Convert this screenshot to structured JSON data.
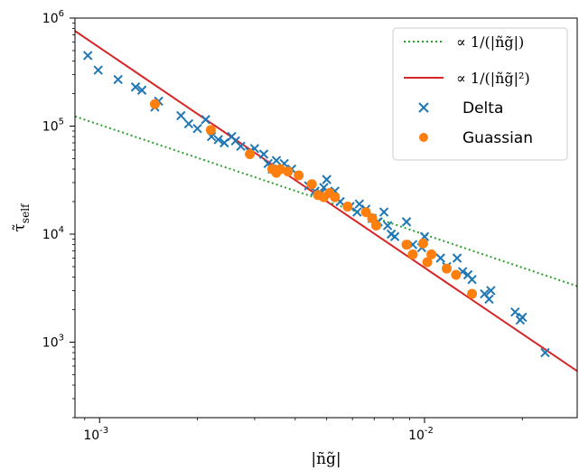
{
  "chart_data": {
    "type": "scatter",
    "xscale": "log",
    "yscale": "log",
    "xlim": [
      0.00084,
      0.0295
    ],
    "ylim": [
      200,
      1000000
    ],
    "xlabel": "|ñg̃|",
    "ylabel": "τ̃",
    "ylabel_sub": "self",
    "grid": false,
    "legend_position": "top-right",
    "x_ticks": [
      {
        "value": 0.001,
        "base": "10",
        "exp": "-3"
      },
      {
        "value": 0.01,
        "base": "10",
        "exp": "-2"
      }
    ],
    "y_ticks": [
      {
        "value": 1000,
        "base": "10",
        "exp": "3"
      },
      {
        "value": 10000,
        "base": "10",
        "exp": "4"
      },
      {
        "value": 100000,
        "base": "10",
        "exp": "5"
      },
      {
        "value": 1000000,
        "base": "10",
        "exp": "6"
      }
    ],
    "lines": [
      {
        "name": "∝ 1/(|ñg̃|)",
        "style": "dotted",
        "color": "#2ca02c",
        "x": [
          0.00084,
          0.0295
        ],
        "y": [
          123000,
          3300
        ]
      },
      {
        "name": "∝ 1/(|ñg̃|²)",
        "style": "solid",
        "color": "#d62728",
        "x": [
          0.00084,
          0.0295
        ],
        "y": [
          760000,
          540
        ]
      }
    ],
    "series": [
      {
        "name": "Delta",
        "marker": "x",
        "color": "#1f77b4",
        "x": [
          0.00092,
          0.00099,
          0.00114,
          0.00129,
          0.00135,
          0.00148,
          0.00152,
          0.00178,
          0.00188,
          0.002,
          0.00212,
          0.00221,
          0.00232,
          0.00242,
          0.00255,
          0.00262,
          0.00272,
          0.0029,
          0.003,
          0.0032,
          0.0033,
          0.0034,
          0.0035,
          0.0037,
          0.0039,
          0.0044,
          0.0046,
          0.0048,
          0.0049,
          0.005,
          0.0051,
          0.0053,
          0.0055,
          0.0059,
          0.0062,
          0.0063,
          0.0066,
          0.0069,
          0.0072,
          0.0075,
          0.0077,
          0.0079,
          0.0081,
          0.0088,
          0.0092,
          0.0098,
          0.01,
          0.0112,
          0.0117,
          0.0126,
          0.0131,
          0.0136,
          0.014,
          0.0153,
          0.0158,
          0.016,
          0.019,
          0.0197,
          0.02,
          0.0235
        ],
        "y": [
          450000,
          330000,
          270000,
          230000,
          215000,
          150000,
          170000,
          125000,
          105000,
          95000,
          115000,
          80000,
          75000,
          70000,
          80000,
          73000,
          65000,
          58000,
          62000,
          55000,
          45000,
          40000,
          48000,
          45000,
          40000,
          28000,
          25000,
          24000,
          27000,
          32000,
          23000,
          25000,
          20000,
          18000,
          16000,
          19000,
          17000,
          14000,
          13000,
          16000,
          12000,
          10000,
          9500,
          13000,
          8000,
          7500,
          9500,
          6000,
          5000,
          6000,
          4500,
          4200,
          3800,
          2800,
          2500,
          3000,
          1900,
          1600,
          1700,
          800
        ]
      },
      {
        "name": "Guassian",
        "marker": "o",
        "color": "#ff7f0e",
        "x": [
          0.00148,
          0.0022,
          0.0029,
          0.0034,
          0.0035,
          0.0036,
          0.0038,
          0.0041,
          0.0045,
          0.0047,
          0.0049,
          0.0051,
          0.0053,
          0.0058,
          0.0066,
          0.0069,
          0.0071,
          0.0088,
          0.0092,
          0.0099,
          0.0102,
          0.0105,
          0.0117,
          0.0125,
          0.014
        ],
        "y": [
          160000,
          92000,
          55000,
          40000,
          37000,
          40000,
          38000,
          35000,
          29000,
          23000,
          22000,
          24000,
          22000,
          18000,
          16000,
          14000,
          12000,
          8000,
          6500,
          8200,
          5500,
          6500,
          4800,
          4200,
          2800
        ]
      }
    ]
  }
}
